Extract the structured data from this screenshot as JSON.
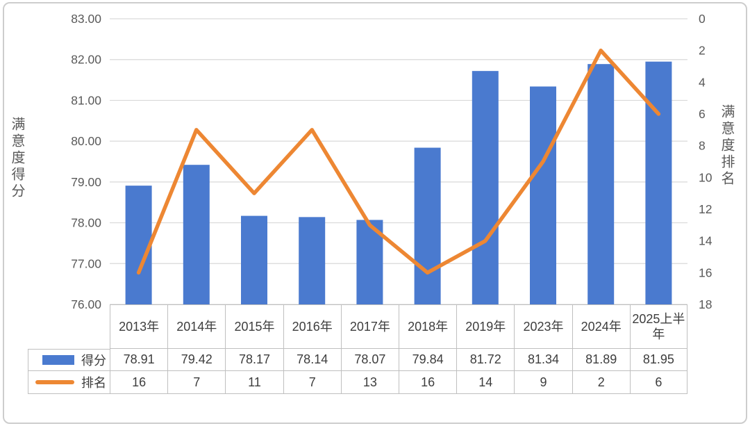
{
  "chart_data": {
    "type": "bar",
    "subtype": "combo-bar-line",
    "categories": [
      "2013年",
      "2014年",
      "2015年",
      "2016年",
      "2017年",
      "2018年",
      "2019年",
      "2023年",
      "2024年",
      "2025上半年"
    ],
    "series": [
      {
        "name": "得分",
        "type": "bar",
        "axis": "left",
        "color": "#4a7acf",
        "values": [
          78.91,
          79.42,
          78.17,
          78.14,
          78.07,
          79.84,
          81.72,
          81.34,
          81.89,
          81.95
        ]
      },
      {
        "name": "排名",
        "type": "line",
        "axis": "right",
        "color": "#ed8733",
        "values": [
          16,
          7,
          11,
          7,
          13,
          16,
          14,
          9,
          2,
          6
        ]
      }
    ],
    "left_axis": {
      "label": "满意度得分",
      "range": [
        76,
        83
      ],
      "tick_step": 1,
      "ticks": [
        "83.00",
        "82.00",
        "81.00",
        "80.00",
        "79.00",
        "78.00",
        "77.00",
        "76.00"
      ]
    },
    "right_axis": {
      "label": "满意度排名",
      "range": [
        0,
        18
      ],
      "tick_step": 2,
      "orientation": "0 at top, 18 at bottom",
      "ticks": [
        "0",
        "2",
        "4",
        "6",
        "8",
        "10",
        "12",
        "14",
        "16",
        "18"
      ]
    },
    "grid": "horizontal, light gray, at left-axis ticks",
    "legend_position": "data-table rows, bottom-left",
    "title": ""
  },
  "legend": [
    {
      "label": "得分",
      "swatch": "bar",
      "color": "#4a7acf"
    },
    {
      "label": "排名",
      "swatch": "line",
      "color": "#ed8733"
    }
  ],
  "table": {
    "categories": [
      "2013年",
      "2014年",
      "2015年",
      "2016年",
      "2017年",
      "2018年",
      "2019年",
      "2023年",
      "2024年",
      "2025上半年"
    ],
    "rows": [
      {
        "label": "得分",
        "values": [
          "78.91",
          "79.42",
          "78.17",
          "78.14",
          "78.07",
          "79.84",
          "81.72",
          "81.34",
          "81.89",
          "81.95"
        ]
      },
      {
        "label": "排名",
        "values": [
          "16",
          "7",
          "11",
          "7",
          "13",
          "16",
          "14",
          "9",
          "2",
          "6"
        ]
      }
    ]
  },
  "colors": {
    "bar": "#4a7acf",
    "line": "#ed8733",
    "gridline": "#d9d9d9",
    "table_border": "#bfbfbf",
    "tick_text": "#595959",
    "table_text": "#3d3d3d",
    "frame_border": "#cdcdcd",
    "background": "#ffffff"
  }
}
